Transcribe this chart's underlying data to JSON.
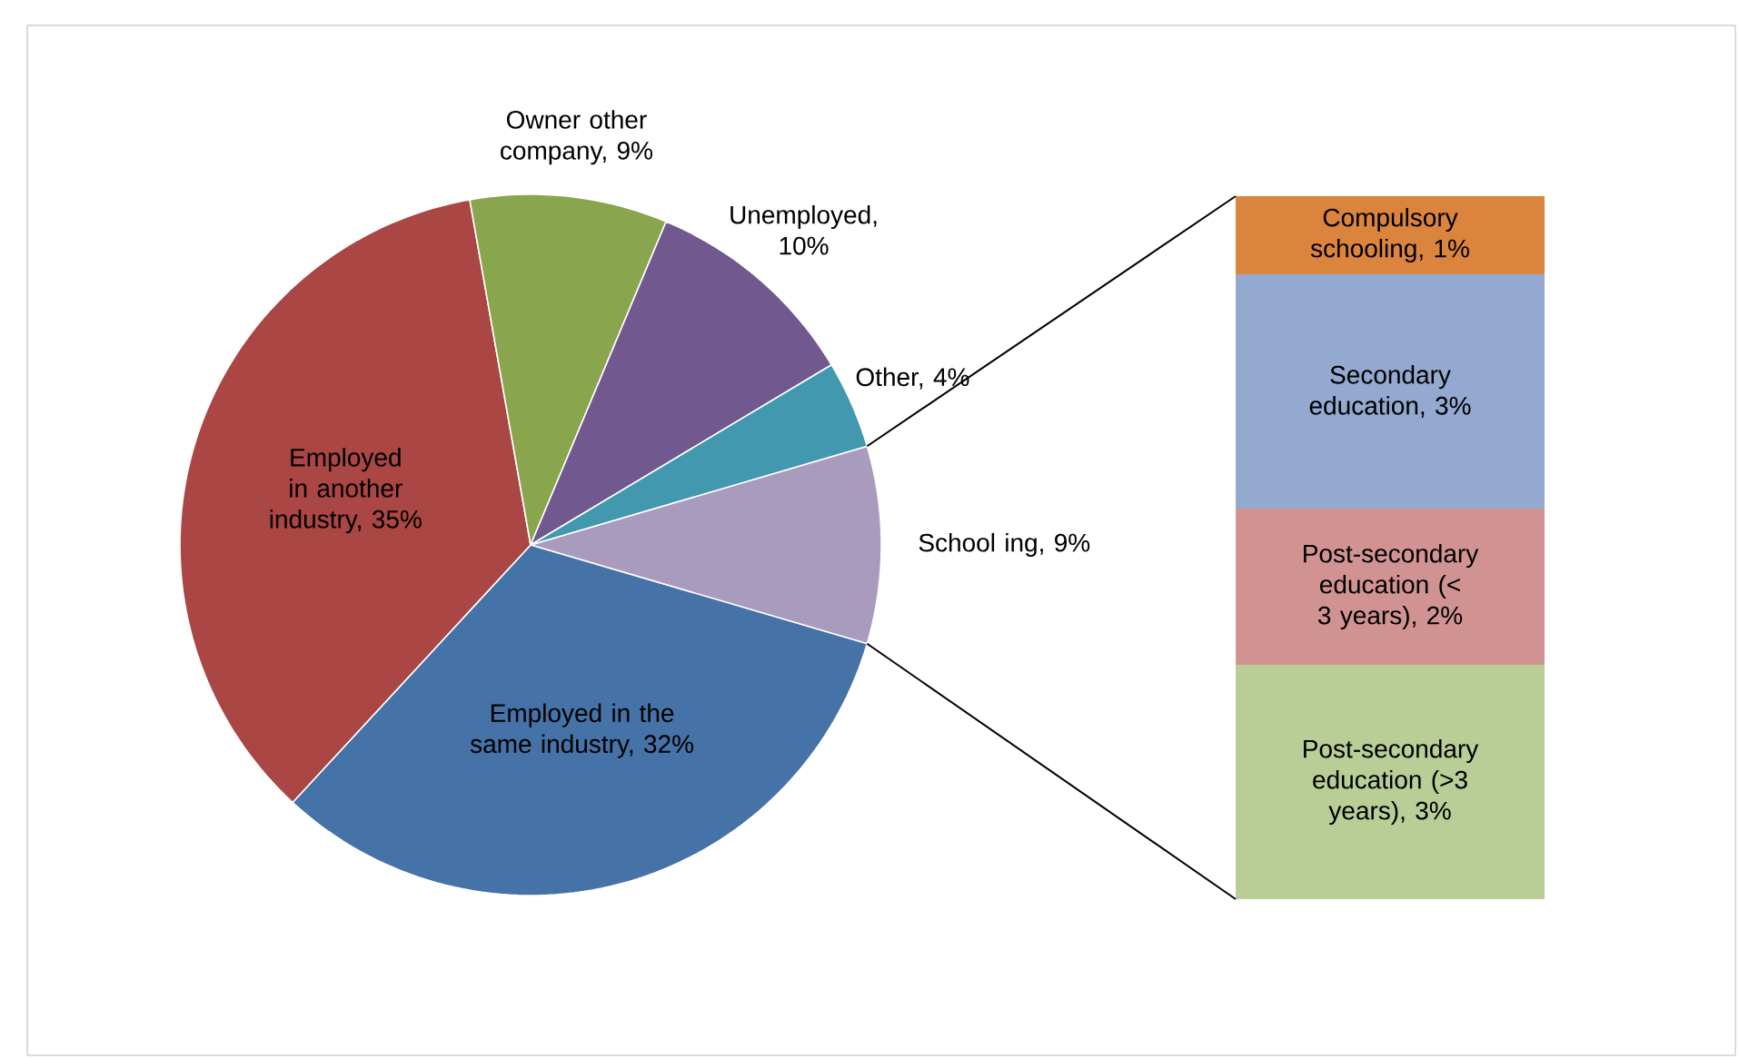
{
  "chart_data": [
    {
      "type": "pie",
      "categories": [
        "School ing, 9%",
        "Employed in the same industry, 32%",
        "Employed in another industry, 35%",
        "Owner other company, 9%",
        "Unemployed, 10%",
        "Other, 4%"
      ],
      "values": [
        9,
        32,
        35,
        9,
        10,
        4
      ],
      "colors": [
        "#a99bbd",
        "#4572a7",
        "#aa4643",
        "#89a54e",
        "#71588f",
        "#4198af"
      ]
    },
    {
      "type": "bar",
      "stacked": true,
      "categories": [
        null
      ],
      "series": [
        {
          "color": "#b9cd96",
          "values": [
            3
          ],
          "value_labels": [
            "Post-secondary education (>3 years), 3%"
          ]
        },
        {
          "color": "#d19392",
          "values": [
            2
          ],
          "value_labels": [
            "Post-secondary education (< 3 years), 2%"
          ]
        },
        {
          "color": "#93a9cf",
          "values": [
            3
          ],
          "value_labels": [
            "Secondary education, 3%"
          ]
        },
        {
          "color": "#db843d",
          "values": [
            1
          ],
          "value_labels": [
            "Compulsory schooling, 1%"
          ]
        }
      ]
    }
  ]
}
